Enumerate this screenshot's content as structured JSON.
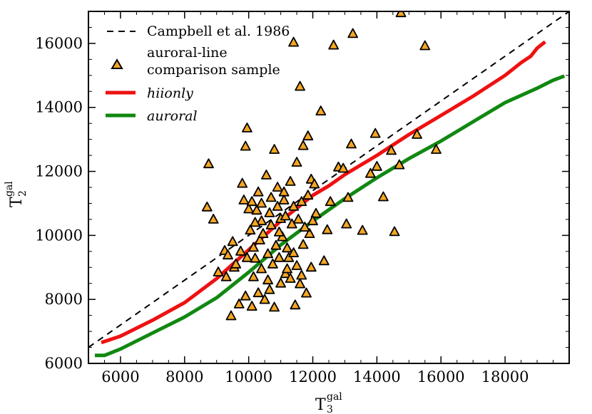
{
  "chart_data": {
    "type": "scatter",
    "title": "",
    "xlabel": {
      "main": "T",
      "sub": "3",
      "sup": "gal"
    },
    "ylabel": {
      "main": "T",
      "sub": "2",
      "sup": "gal"
    },
    "xlim": [
      5000,
      20000
    ],
    "ylim": [
      6000,
      17000
    ],
    "x_ticks": [
      6000,
      8000,
      10000,
      12000,
      14000,
      16000,
      18000
    ],
    "x_tick_labels": [
      "6000",
      "8000",
      "10000",
      "12000",
      "14000",
      "16000",
      "18000"
    ],
    "y_ticks": [
      6000,
      8000,
      10000,
      12000,
      14000,
      16000
    ],
    "y_tick_labels": [
      "6000",
      "8000",
      "10000",
      "12000",
      "14000",
      "16000"
    ],
    "legend_position": "top-left",
    "colors": {
      "campbell": "#000000",
      "scatter_fill": "#f5a623",
      "scatter_edge": "#000000",
      "hiionly": "#ee1111",
      "auroral": "#118811"
    },
    "series": [
      {
        "name": "Campbell et al. 1986",
        "kind": "line",
        "style": "dashed",
        "color": "#000000",
        "x": [
          5000,
          20000
        ],
        "y": [
          6500,
          17000
        ]
      },
      {
        "name": "auroral-line comparison sample",
        "legend_lines": [
          "auroral-line",
          "comparison sample"
        ],
        "kind": "scatter",
        "marker": "triangle",
        "points": [
          [
            8750,
            12230
          ],
          [
            8700,
            10880
          ],
          [
            8900,
            10500
          ],
          [
            9050,
            8850
          ],
          [
            9250,
            9520
          ],
          [
            9350,
            9380
          ],
          [
            9300,
            8700
          ],
          [
            9500,
            9800
          ],
          [
            9450,
            7480
          ],
          [
            9550,
            9000
          ],
          [
            9700,
            7850
          ],
          [
            9800,
            11620
          ],
          [
            9850,
            11100
          ],
          [
            9900,
            12780
          ],
          [
            9950,
            13350
          ],
          [
            10000,
            10820
          ],
          [
            10050,
            10160
          ],
          [
            10150,
            9620
          ],
          [
            10200,
            9280
          ],
          [
            10250,
            10780
          ],
          [
            10300,
            11350
          ],
          [
            10400,
            10450
          ],
          [
            10550,
            11880
          ],
          [
            10700,
            11180
          ],
          [
            10800,
            12680
          ],
          [
            10900,
            10900
          ],
          [
            11000,
            10520
          ],
          [
            11100,
            11100
          ],
          [
            11200,
            9600
          ],
          [
            11300,
            11680
          ],
          [
            11400,
            16030
          ],
          [
            11500,
            12280
          ],
          [
            11600,
            14650
          ],
          [
            11700,
            12800
          ],
          [
            11850,
            13100
          ],
          [
            11950,
            11750
          ],
          [
            12100,
            10680
          ],
          [
            12250,
            13880
          ],
          [
            12350,
            9200
          ],
          [
            12450,
            10170
          ],
          [
            12550,
            11050
          ],
          [
            12650,
            15940
          ],
          [
            12800,
            12130
          ],
          [
            12950,
            12090
          ],
          [
            13050,
            10350
          ],
          [
            13100,
            11180
          ],
          [
            13200,
            12850
          ],
          [
            13250,
            16300
          ],
          [
            13550,
            10150
          ],
          [
            13800,
            11930
          ],
          [
            13950,
            13180
          ],
          [
            14000,
            12150
          ],
          [
            14200,
            11200
          ],
          [
            14450,
            12650
          ],
          [
            14550,
            10110
          ],
          [
            14700,
            12200
          ],
          [
            14750,
            16950
          ],
          [
            15250,
            13150
          ],
          [
            15500,
            15920
          ],
          [
            15850,
            12680
          ],
          [
            9900,
            8100
          ],
          [
            10100,
            7780
          ],
          [
            10300,
            8200
          ],
          [
            10500,
            7990
          ],
          [
            10650,
            8300
          ],
          [
            10800,
            7750
          ],
          [
            11000,
            8500
          ],
          [
            11150,
            8800
          ],
          [
            11300,
            8650
          ],
          [
            11450,
            7820
          ],
          [
            11600,
            8480
          ],
          [
            11800,
            8190
          ],
          [
            11950,
            9000
          ],
          [
            10350,
            9850
          ],
          [
            10600,
            9420
          ],
          [
            10850,
            9680
          ],
          [
            11050,
            9950
          ],
          [
            11250,
            9300
          ],
          [
            11500,
            9050
          ],
          [
            11700,
            9710
          ],
          [
            11900,
            10050
          ],
          [
            10200,
            10400
          ],
          [
            10450,
            10050
          ],
          [
            10700,
            10320
          ],
          [
            10950,
            10100
          ],
          [
            11150,
            10600
          ],
          [
            11350,
            10350
          ],
          [
            11550,
            10500
          ],
          [
            11750,
            10250
          ],
          [
            12000,
            10450
          ],
          [
            10100,
            11050
          ],
          [
            10400,
            11000
          ],
          [
            10650,
            10700
          ],
          [
            10900,
            11500
          ],
          [
            11100,
            11350
          ],
          [
            11400,
            10900
          ],
          [
            11650,
            11050
          ],
          [
            11850,
            11250
          ],
          [
            12050,
            11600
          ],
          [
            9600,
            9100
          ],
          [
            9750,
            9500
          ],
          [
            9950,
            9300
          ],
          [
            10150,
            8700
          ],
          [
            10400,
            8950
          ],
          [
            10600,
            8600
          ],
          [
            10750,
            9100
          ],
          [
            10950,
            9300
          ],
          [
            11200,
            8950
          ],
          [
            11400,
            9450
          ],
          [
            11650,
            8750
          ]
        ]
      },
      {
        "name": "hiionly",
        "kind": "line",
        "style": "solid",
        "color": "#ee1111",
        "x": [
          5400,
          6000,
          7000,
          8000,
          9000,
          10000,
          11000,
          11500,
          12000,
          12500,
          13000,
          14000,
          15000,
          16000,
          17000,
          18000,
          18500,
          18800,
          19000,
          19250
        ],
        "y": [
          6650,
          6850,
          7350,
          7900,
          8650,
          9550,
          10450,
          10850,
          11250,
          11550,
          11900,
          12500,
          13150,
          13750,
          14350,
          15000,
          15400,
          15600,
          15850,
          16050
        ]
      },
      {
        "name": "auroral",
        "kind": "line",
        "style": "solid",
        "color": "#118811",
        "x": [
          5200,
          5500,
          6000,
          7000,
          8000,
          9000,
          10000,
          11000,
          12000,
          12500,
          13000,
          14000,
          15000,
          16000,
          17000,
          18000,
          19000,
          19500,
          19850
        ],
        "y": [
          6250,
          6250,
          6450,
          6950,
          7450,
          8050,
          8850,
          9700,
          10450,
          10800,
          11150,
          11800,
          12400,
          12950,
          13550,
          14150,
          14600,
          14850,
          14980
        ]
      }
    ]
  }
}
